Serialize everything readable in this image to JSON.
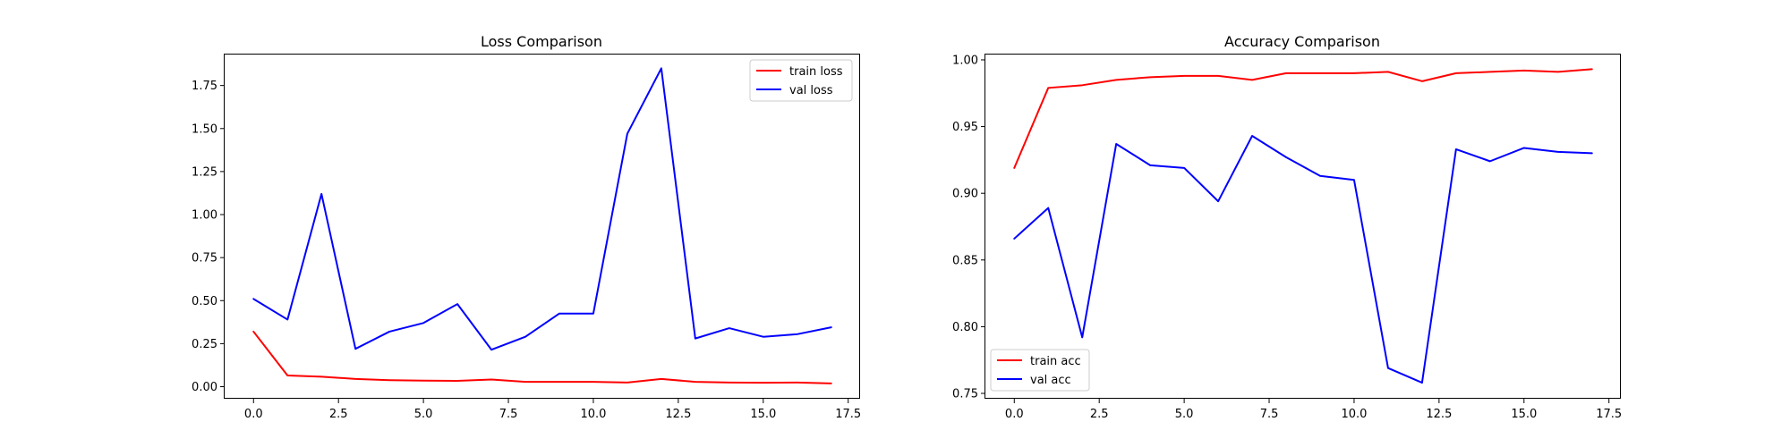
{
  "chart_data": [
    {
      "type": "line",
      "title": "Loss Comparison",
      "xlabel": "",
      "ylabel": "",
      "x": [
        0,
        1,
        2,
        3,
        4,
        5,
        6,
        7,
        8,
        9,
        10,
        11,
        12,
        13,
        14,
        15,
        16,
        17
      ],
      "xlim": [
        -0.85,
        17.85
      ],
      "ylim": [
        -0.07,
        1.93
      ],
      "xticks": [
        0.0,
        2.5,
        5.0,
        7.5,
        10.0,
        12.5,
        15.0,
        17.5
      ],
      "xtick_labels": [
        "0.0",
        "2.5",
        "5.0",
        "7.5",
        "10.0",
        "12.5",
        "15.0",
        "17.5"
      ],
      "yticks": [
        0.0,
        0.25,
        0.5,
        0.75,
        1.0,
        1.25,
        1.5,
        1.75
      ],
      "ytick_labels": [
        "0.00",
        "0.25",
        "0.50",
        "0.75",
        "1.00",
        "1.25",
        "1.50",
        "1.75"
      ],
      "legend_position": "upper right",
      "grid": false,
      "series": [
        {
          "name": "train loss",
          "color": "#ff0000",
          "values": [
            0.32,
            0.065,
            0.058,
            0.045,
            0.038,
            0.035,
            0.034,
            0.042,
            0.028,
            0.028,
            0.028,
            0.024,
            0.045,
            0.028,
            0.024,
            0.023,
            0.024,
            0.019
          ]
        },
        {
          "name": "val loss",
          "color": "#0000ff",
          "values": [
            0.51,
            0.39,
            1.12,
            0.22,
            0.32,
            0.37,
            0.48,
            0.215,
            0.29,
            0.425,
            0.425,
            1.47,
            1.85,
            0.28,
            0.34,
            0.29,
            0.305,
            0.345
          ]
        }
      ]
    },
    {
      "type": "line",
      "title": "Accuracy Comparison",
      "xlabel": "",
      "ylabel": "",
      "x": [
        0,
        1,
        2,
        3,
        4,
        5,
        6,
        7,
        8,
        9,
        10,
        11,
        12,
        13,
        14,
        15,
        16,
        17
      ],
      "xlim": [
        -0.85,
        17.85
      ],
      "ylim": [
        0.746,
        1.004
      ],
      "xticks": [
        0.0,
        2.5,
        5.0,
        7.5,
        10.0,
        12.5,
        15.0,
        17.5
      ],
      "xtick_labels": [
        "0.0",
        "2.5",
        "5.0",
        "7.5",
        "10.0",
        "12.5",
        "15.0",
        "17.5"
      ],
      "yticks": [
        0.75,
        0.8,
        0.85,
        0.9,
        0.95,
        1.0
      ],
      "ytick_labels": [
        "0.75",
        "0.80",
        "0.85",
        "0.90",
        "0.95",
        "1.00"
      ],
      "legend_position": "lower left",
      "grid": false,
      "series": [
        {
          "name": "train acc",
          "color": "#ff0000",
          "values": [
            0.919,
            0.979,
            0.981,
            0.985,
            0.987,
            0.988,
            0.988,
            0.985,
            0.99,
            0.99,
            0.99,
            0.991,
            0.984,
            0.99,
            0.991,
            0.992,
            0.991,
            0.993
          ]
        },
        {
          "name": "val acc",
          "color": "#0000ff",
          "values": [
            0.866,
            0.889,
            0.792,
            0.937,
            0.921,
            0.919,
            0.894,
            0.943,
            0.927,
            0.913,
            0.91,
            0.769,
            0.758,
            0.933,
            0.924,
            0.934,
            0.931,
            0.93
          ]
        }
      ]
    }
  ]
}
